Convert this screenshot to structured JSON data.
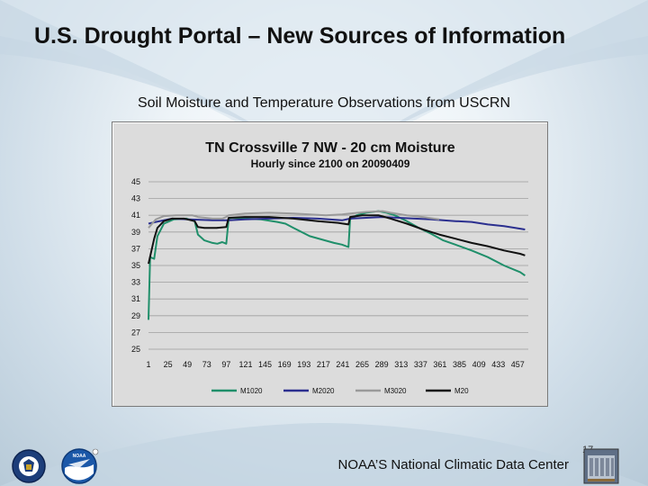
{
  "slide": {
    "title": "U.S. Drought Portal – New Sources of Information",
    "subtitle": "Soil Moisture and Temperature Observations from USCRN",
    "footer": "NOAA’S National Climatic Data Center",
    "slide_number": "17",
    "logos": [
      "commerce-seal-icon",
      "noaa-logo-icon",
      "ncdc-building-icon"
    ]
  },
  "chart_data": {
    "type": "line",
    "title": "TN Crossville 7 NW - 20 cm Moisture",
    "subtitle": "Hourly since 2100 on 20090409",
    "xlabel": "",
    "ylabel": "",
    "xlim": [
      1,
      470
    ],
    "ylim": [
      25,
      45
    ],
    "yticks": [
      45,
      43,
      41,
      39,
      37,
      35,
      33,
      31,
      29,
      27,
      25
    ],
    "xticks": [
      1,
      25,
      49,
      73,
      97,
      121,
      145,
      169,
      193,
      217,
      241,
      265,
      289,
      313,
      337,
      361,
      385,
      409,
      433,
      457
    ],
    "grid": true,
    "legend_position": "bottom",
    "series": [
      {
        "name": "M1020",
        "color": "#1f8f6a",
        "x": [
          1,
          3,
          8,
          12,
          20,
          32,
          48,
          58,
          62,
          70,
          80,
          86,
          92,
          97,
          100,
          104,
          120,
          140,
          160,
          170,
          180,
          200,
          230,
          240,
          248,
          250,
          258,
          270,
          285,
          295,
          305,
          320,
          335,
          350,
          365,
          380,
          400,
          420,
          440,
          460,
          466
        ],
        "y": [
          28.5,
          36.0,
          35.8,
          38.5,
          40.0,
          40.5,
          40.6,
          40.3,
          38.7,
          38.0,
          37.7,
          37.6,
          37.8,
          37.6,
          40.6,
          40.7,
          40.6,
          40.5,
          40.2,
          40.0,
          39.5,
          38.5,
          37.7,
          37.5,
          37.2,
          40.5,
          41.0,
          41.3,
          41.5,
          41.3,
          41.0,
          40.3,
          39.5,
          38.8,
          38.0,
          37.5,
          36.8,
          36.0,
          35.0,
          34.2,
          33.8
        ]
      },
      {
        "name": "M2020",
        "color": "#2b2f8f",
        "x": [
          1,
          10,
          30,
          50,
          80,
          100,
          120,
          150,
          180,
          210,
          240,
          250,
          270,
          290,
          310,
          330,
          350,
          380,
          400,
          420,
          440,
          460,
          466
        ],
        "y": [
          40.0,
          40.2,
          40.6,
          40.5,
          40.4,
          40.4,
          40.5,
          40.6,
          40.7,
          40.6,
          40.4,
          40.6,
          40.7,
          40.8,
          40.7,
          40.6,
          40.5,
          40.3,
          40.2,
          39.9,
          39.7,
          39.4,
          39.3
        ]
      },
      {
        "name": "M3020",
        "color": "#9a9a9a",
        "x": [
          1,
          10,
          20,
          35,
          55,
          62,
          80,
          92,
          97,
          100,
          120,
          150,
          180,
          200,
          220,
          240,
          250,
          270,
          290,
          300,
          320,
          340,
          360
        ],
        "y": [
          39.5,
          40.5,
          40.9,
          41.0,
          41.0,
          40.8,
          40.6,
          40.6,
          40.8,
          41.0,
          41.2,
          41.3,
          41.2,
          41.1,
          41.0,
          41.1,
          41.2,
          41.4,
          41.5,
          41.3,
          41.0,
          40.8,
          40.5
        ]
      },
      {
        "name": "M20",
        "color": "#111111",
        "x": [
          1,
          8,
          12,
          20,
          30,
          45,
          58,
          62,
          70,
          85,
          97,
          100,
          120,
          150,
          180,
          210,
          235,
          248,
          250,
          265,
          285,
          300,
          320,
          340,
          360,
          380,
          400,
          420,
          440,
          460,
          466
        ],
        "y": [
          35.2,
          38.2,
          39.5,
          40.3,
          40.6,
          40.6,
          40.3,
          39.6,
          39.5,
          39.5,
          39.6,
          40.7,
          40.8,
          40.8,
          40.6,
          40.3,
          40.1,
          39.9,
          40.8,
          41.0,
          41.0,
          40.6,
          40.0,
          39.3,
          38.7,
          38.2,
          37.7,
          37.3,
          36.8,
          36.4,
          36.2
        ]
      }
    ]
  }
}
